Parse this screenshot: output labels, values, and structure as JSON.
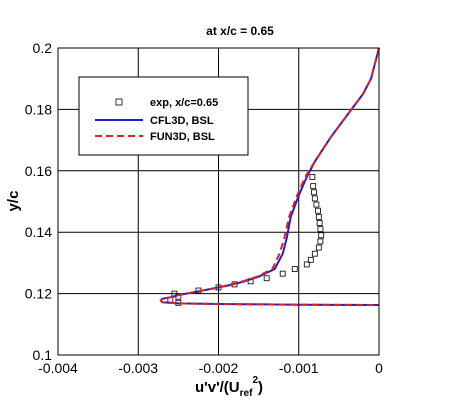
{
  "chart_data": {
    "type": "line",
    "title": "at x/c = 0.65",
    "xlabel": {
      "base": "u'v'/(U",
      "sub": "ref",
      "sup": "2",
      "close": ")"
    },
    "ylabel": "y/c",
    "xlim": [
      -0.004,
      0
    ],
    "ylim": [
      0.1,
      0.2
    ],
    "grid": true,
    "legend_position": "upper-left",
    "x_ticks": [
      {
        "value": -0.004,
        "label": "-0.004"
      },
      {
        "value": -0.003,
        "label": "-0.003"
      },
      {
        "value": -0.002,
        "label": "-0.002"
      },
      {
        "value": -0.001,
        "label": "-0.001"
      },
      {
        "value": 0,
        "label": "0"
      }
    ],
    "y_ticks": [
      {
        "value": 0.1,
        "label": "0.1"
      },
      {
        "value": 0.12,
        "label": "0.12"
      },
      {
        "value": 0.14,
        "label": "0.14"
      },
      {
        "value": 0.16,
        "label": "0.16"
      },
      {
        "value": 0.18,
        "label": "0.18"
      },
      {
        "value": 0.2,
        "label": "0.2"
      }
    ],
    "series": [
      {
        "name": "exp, x/c=0.65",
        "kind": "markers",
        "color": "#000000",
        "x": [
          -0.0026,
          -0.00255,
          -0.0025,
          -0.0025,
          -0.00225,
          -0.002,
          -0.0018,
          -0.0016,
          -0.0014,
          -0.0012,
          -0.00105,
          -0.0009,
          -0.00085,
          -0.0008,
          -0.00075,
          -0.00073,
          -0.00072,
          -0.00073,
          -0.00074,
          -0.00075,
          -0.00076,
          -0.00078,
          -0.0008,
          -0.00081,
          -0.00082,
          -0.00083
        ],
        "y": [
          0.118,
          0.12,
          0.117,
          0.119,
          0.121,
          0.122,
          0.123,
          0.124,
          0.125,
          0.1265,
          0.128,
          0.1295,
          0.131,
          0.133,
          0.135,
          0.137,
          0.139,
          0.141,
          0.143,
          0.145,
          0.147,
          0.149,
          0.151,
          0.153,
          0.155,
          0.158
        ]
      },
      {
        "name": "CFL3D, BSL",
        "kind": "line",
        "dash": false,
        "color": "#1f1fcf",
        "x": [
          0,
          -0.0001,
          -0.0002,
          -0.0004,
          -0.0006,
          -0.0008,
          -0.0009,
          -0.001,
          -0.0011,
          -0.00115,
          -0.0012,
          -0.0013,
          -0.0015,
          -0.0017,
          -0.0019,
          -0.0021,
          -0.0023,
          -0.0025,
          -0.0026,
          -0.0027,
          -0.00272,
          -0.0027,
          -0.0025,
          -0.002,
          -0.001,
          0
        ],
        "y": [
          0.2,
          0.19,
          0.185,
          0.178,
          0.171,
          0.163,
          0.158,
          0.152,
          0.145,
          0.138,
          0.133,
          0.128,
          0.1255,
          0.1238,
          0.1225,
          0.1215,
          0.1205,
          0.1195,
          0.1188,
          0.1183,
          0.1178,
          0.1172,
          0.1168,
          0.1166,
          0.1164,
          0.1163
        ]
      },
      {
        "name": "FUN3D, BSL",
        "kind": "line",
        "dash": true,
        "color": "#e02020",
        "x": [
          0,
          -0.0001,
          -0.0002,
          -0.0004,
          -0.0006,
          -0.0008,
          -0.00092,
          -0.00102,
          -0.00112,
          -0.00118,
          -0.00124,
          -0.00133,
          -0.00152,
          -0.00172,
          -0.00192,
          -0.0021,
          -0.0023,
          -0.0025,
          -0.0026,
          -0.0027,
          -0.00272,
          -0.0027,
          -0.0025,
          -0.002,
          -0.001,
          0
        ],
        "y": [
          0.2,
          0.19,
          0.185,
          0.178,
          0.171,
          0.163,
          0.158,
          0.152,
          0.145,
          0.138,
          0.133,
          0.128,
          0.1255,
          0.1238,
          0.1225,
          0.1215,
          0.1205,
          0.1195,
          0.1188,
          0.1183,
          0.1178,
          0.1172,
          0.1168,
          0.1166,
          0.1164,
          0.1163
        ]
      }
    ]
  }
}
